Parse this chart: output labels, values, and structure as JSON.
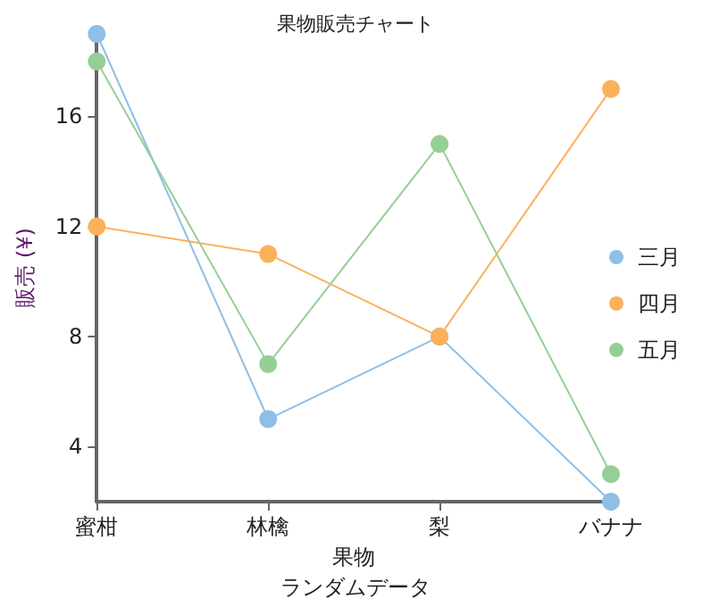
{
  "chart_data": {
    "type": "line",
    "title": "果物販売チャート",
    "xlabel": "果物",
    "ylabel": "販売 (¥)",
    "annotations": [
      "ランダムデータ"
    ],
    "categories": [
      "蜜柑",
      "林檎",
      "梨",
      "バナナ"
    ],
    "series": [
      {
        "name": "三月",
        "color": "#8fbfe6",
        "values": [
          19,
          5,
          8,
          2
        ]
      },
      {
        "name": "四月",
        "color": "#fbb15c",
        "values": [
          12,
          11,
          8,
          17
        ]
      },
      {
        "name": "五月",
        "color": "#96cf96",
        "values": [
          18,
          7,
          15,
          3
        ]
      }
    ],
    "ylim": [
      2,
      19
    ],
    "yticks": [
      4,
      8,
      12,
      16
    ],
    "grid": false,
    "legend": "right",
    "marker": "circle",
    "line_style": "solid"
  }
}
